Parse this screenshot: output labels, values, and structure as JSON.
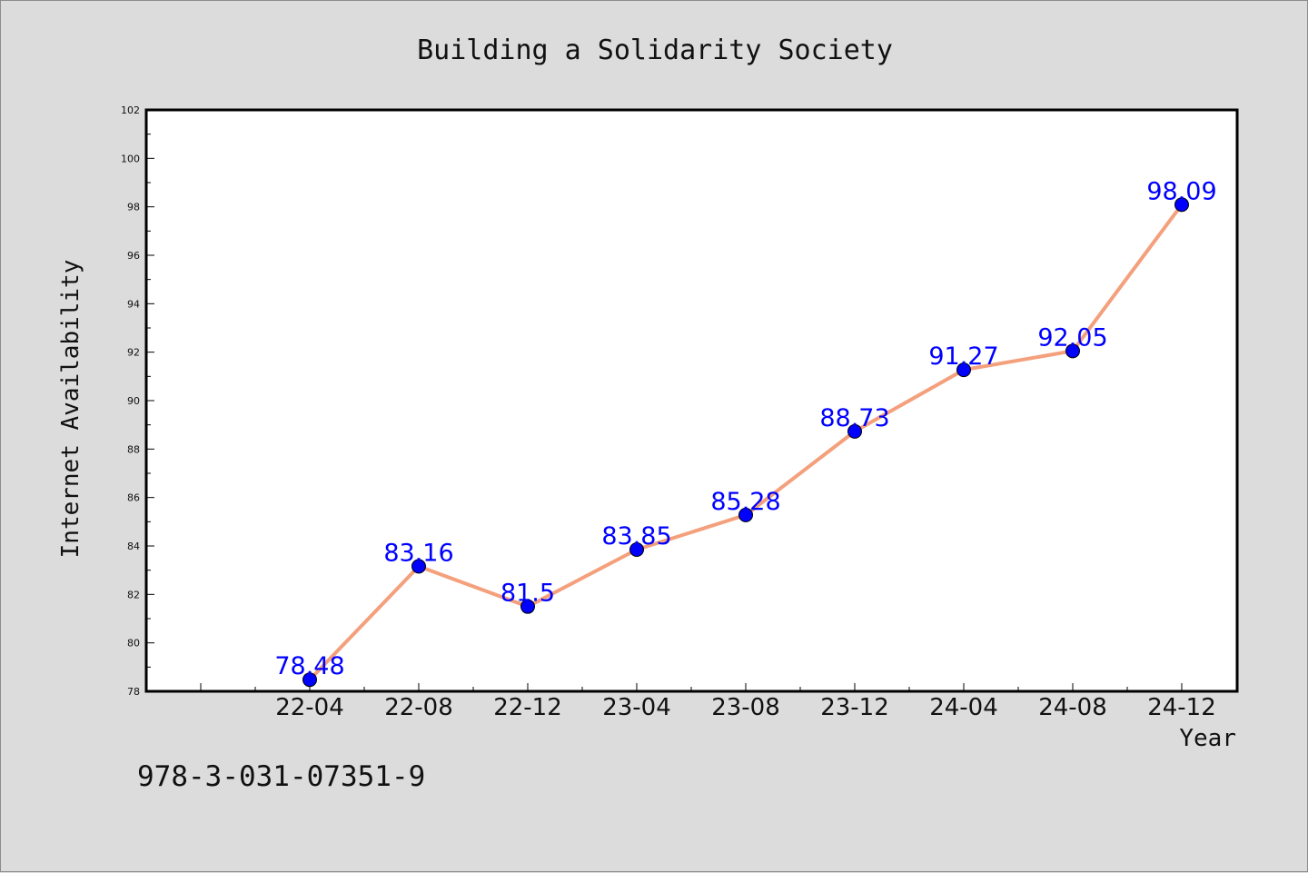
{
  "chart_data": {
    "type": "line",
    "title": "Building a Solidarity Society",
    "xlabel": "Year",
    "ylabel": "Internet Availability",
    "categories": [
      "22-04",
      "22-08",
      "22-12",
      "23-04",
      "23-08",
      "23-12",
      "24-04",
      "24-08",
      "24-12"
    ],
    "series": [
      {
        "values": [
          78.48,
          83.16,
          81.5,
          83.85,
          85.28,
          88.73,
          91.27,
          92.05,
          98.09
        ],
        "line_color": "#f4a07c",
        "marker_color": "#0000ff"
      }
    ],
    "ylim": [
      78,
      102
    ],
    "yticks": [
      78,
      80,
      82,
      84,
      86,
      88,
      90,
      92,
      94,
      96,
      98,
      100,
      102
    ],
    "grid": false,
    "legend": "none"
  },
  "isbn": "978-3-031-07351-9",
  "colors": {
    "background": "#dcdcdc",
    "plot_background": "#ffffff",
    "line": "#f4a07c",
    "marker": "#0000ff",
    "data_label": "#0000ff"
  }
}
